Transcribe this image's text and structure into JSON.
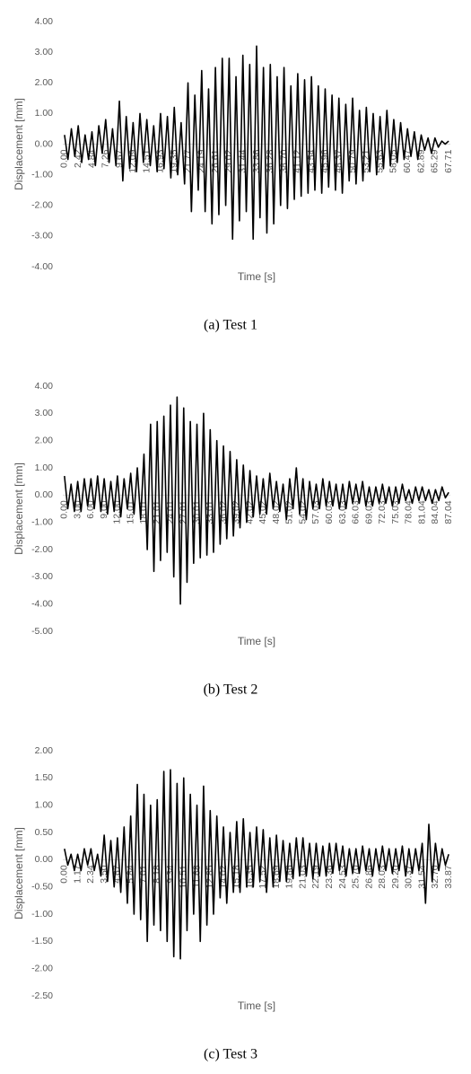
{
  "chart_data": [
    {
      "type": "line",
      "caption": "(a) Test 1",
      "x_label": "Time [s]",
      "y_label": "Displacement [mm]",
      "color": "#000000",
      "categories": [
        "0.00",
        null,
        null,
        null,
        "2.42",
        null,
        null,
        null,
        "4.84",
        null,
        null,
        null,
        "7.26",
        null,
        null,
        null,
        "9.67",
        null,
        null,
        null,
        "12.09",
        null,
        null,
        null,
        "14.51",
        null,
        null,
        null,
        "16.93",
        null,
        null,
        null,
        "19.35",
        null,
        null,
        null,
        "21.77",
        null,
        null,
        null,
        "24.19",
        null,
        null,
        null,
        "26.61",
        null,
        null,
        null,
        "29.02",
        null,
        null,
        null,
        "31.44",
        null,
        null,
        null,
        "33.86",
        null,
        null,
        null,
        "36.28",
        null,
        null,
        null,
        "38.70",
        null,
        null,
        null,
        "41.12",
        null,
        null,
        null,
        "43.54",
        null,
        null,
        null,
        "45.96",
        null,
        null,
        null,
        "48.37",
        null,
        null,
        null,
        "50.79",
        null,
        null,
        null,
        "53.21",
        null,
        null,
        null,
        "55.63",
        null,
        null,
        null,
        "58.05",
        null,
        null,
        null,
        "60.47",
        null,
        null,
        null,
        "62.89",
        null,
        null,
        null,
        "65.29",
        null,
        null,
        null,
        "67.71"
      ],
      "values": [
        0.3,
        -0.5,
        0.5,
        -0.4,
        0.6,
        -0.6,
        0.3,
        -0.5,
        0.4,
        -0.7,
        0.6,
        -0.3,
        0.8,
        -0.6,
        0.5,
        -0.7,
        1.4,
        -1.2,
        0.9,
        -0.8,
        0.7,
        -0.9,
        1.0,
        -0.6,
        0.8,
        -0.7,
        0.6,
        -0.9,
        1.0,
        -0.8,
        0.9,
        -1.1,
        1.2,
        -1.0,
        0.7,
        -1.3,
        2.0,
        -2.2,
        1.6,
        -1.5,
        2.4,
        -2.2,
        1.8,
        -2.6,
        2.5,
        -2.3,
        2.8,
        -2.0,
        2.8,
        -3.1,
        2.2,
        -2.5,
        2.9,
        -2.2,
        2.6,
        -3.1,
        3.2,
        -2.4,
        2.5,
        -2.9,
        2.6,
        -2.6,
        2.2,
        -2.0,
        2.5,
        -2.1,
        1.9,
        -1.8,
        2.3,
        -1.7,
        2.1,
        -1.6,
        2.2,
        -1.5,
        1.9,
        -1.6,
        1.8,
        -1.4,
        1.6,
        -1.5,
        1.5,
        -1.6,
        1.3,
        -1.2,
        1.5,
        -1.3,
        1.1,
        -1.2,
        1.2,
        -0.9,
        1.0,
        -1.0,
        0.9,
        -0.8,
        1.1,
        -0.7,
        0.8,
        -0.6,
        0.7,
        -0.5,
        0.5,
        -0.4,
        0.4,
        -0.5,
        0.3,
        -0.2,
        0.2,
        -0.3,
        0.2,
        -0.1,
        0.1,
        0.0,
        0.1
      ],
      "ylim": [
        -4,
        4
      ],
      "yticks": [
        {
          "value": -4,
          "label": "-4.00"
        },
        {
          "value": -3,
          "label": "-3.00"
        },
        {
          "value": -2,
          "label": "-2.00"
        },
        {
          "value": -1,
          "label": "-1.00"
        },
        {
          "value": 0,
          "label": "0.00"
        },
        {
          "value": 1,
          "label": "1.00"
        },
        {
          "value": 2,
          "label": "2.00"
        },
        {
          "value": 3,
          "label": "3.00"
        },
        {
          "value": 4,
          "label": "4.00"
        }
      ]
    },
    {
      "type": "line",
      "caption": "(b) Test 2",
      "x_label": "Time [s]",
      "y_label": "Displacement [mm]",
      "color": "#000000",
      "categories": [
        "0.00",
        null,
        null,
        null,
        "3.00",
        null,
        null,
        null,
        "6.00",
        null,
        null,
        null,
        "9.00",
        null,
        null,
        null,
        "12.00",
        null,
        null,
        null,
        "15.01",
        null,
        null,
        null,
        "18.01",
        null,
        null,
        null,
        "21.01",
        null,
        null,
        null,
        "24.01",
        null,
        null,
        null,
        "27.01",
        null,
        null,
        null,
        "30.01",
        null,
        null,
        null,
        "33.01",
        null,
        null,
        null,
        "36.02",
        null,
        null,
        null,
        "39.02",
        null,
        null,
        null,
        "42.02",
        null,
        null,
        null,
        "45.02",
        null,
        null,
        null,
        "48.02",
        null,
        null,
        null,
        "51.02",
        null,
        null,
        null,
        "54.02",
        null,
        null,
        null,
        "57.03",
        null,
        null,
        null,
        "60.03",
        null,
        null,
        null,
        "63.03",
        null,
        null,
        null,
        "66.03",
        null,
        null,
        null,
        "69.03",
        null,
        null,
        null,
        "72.03",
        null,
        null,
        null,
        "75.03",
        null,
        null,
        null,
        "78.04",
        null,
        null,
        null,
        "81.04",
        null,
        null,
        null,
        "84.04",
        null,
        null,
        null,
        "87.04"
      ],
      "values": [
        0.7,
        -0.5,
        0.4,
        -0.6,
        0.5,
        -0.6,
        0.6,
        -0.4,
        0.6,
        -0.5,
        0.7,
        -0.6,
        0.6,
        -0.7,
        0.5,
        -0.6,
        0.7,
        -0.8,
        0.6,
        -0.5,
        0.8,
        -0.7,
        1.0,
        -0.9,
        1.5,
        -2.0,
        2.6,
        -2.8,
        2.7,
        -2.4,
        2.9,
        -2.1,
        3.3,
        -3.0,
        3.6,
        -4.0,
        3.2,
        -3.2,
        2.7,
        -2.5,
        2.6,
        -2.3,
        3.0,
        -2.2,
        2.4,
        -2.1,
        2.0,
        -1.8,
        1.8,
        -1.6,
        1.6,
        -1.5,
        1.3,
        -1.2,
        1.1,
        -1.0,
        0.9,
        -0.8,
        0.7,
        -0.7,
        0.6,
        -0.7,
        0.8,
        -0.5,
        0.5,
        -0.6,
        0.4,
        -0.9,
        0.6,
        -0.5,
        1.0,
        -0.7,
        0.6,
        -0.9,
        0.5,
        -0.5,
        0.4,
        -0.5,
        0.6,
        -0.4,
        0.5,
        -0.4,
        0.4,
        -0.5,
        0.4,
        -0.5,
        0.5,
        -0.3,
        0.4,
        -0.3,
        0.5,
        -0.4,
        0.3,
        -0.4,
        0.3,
        -0.3,
        0.4,
        -0.3,
        0.3,
        -0.4,
        0.3,
        -0.3,
        0.4,
        -0.2,
        0.2,
        -0.3,
        0.3,
        -0.2,
        0.3,
        -0.2,
        0.2,
        -0.3,
        0.2,
        -0.2,
        0.3,
        -0.1,
        0.1
      ],
      "ylim": [
        -5,
        4
      ],
      "yticks": [
        {
          "value": -5,
          "label": "-5.00"
        },
        {
          "value": -4,
          "label": "-4.00"
        },
        {
          "value": -3,
          "label": "-3.00"
        },
        {
          "value": -2,
          "label": "-2.00"
        },
        {
          "value": -1,
          "label": "-1.00"
        },
        {
          "value": 0,
          "label": "0.00"
        },
        {
          "value": 1,
          "label": "1.00"
        },
        {
          "value": 2,
          "label": "2.00"
        },
        {
          "value": 3,
          "label": "3.00"
        },
        {
          "value": 4,
          "label": "4.00"
        }
      ]
    },
    {
      "type": "line",
      "caption": "(c) Test 3",
      "x_label": "Time [s]",
      "y_label": "Displacement [mm]",
      "color": "#000000",
      "categories": [
        "0.00",
        null,
        null,
        null,
        "1.17",
        null,
        null,
        null,
        "2.34",
        null,
        null,
        null,
        "3.50",
        null,
        null,
        null,
        "4.67",
        null,
        null,
        null,
        "5.84",
        null,
        null,
        null,
        "7.01",
        null,
        null,
        null,
        "8.18",
        null,
        null,
        null,
        "9.34",
        null,
        null,
        null,
        "10.51",
        null,
        null,
        null,
        "11.68",
        null,
        null,
        null,
        "12.85",
        null,
        null,
        null,
        "14.02",
        null,
        null,
        null,
        "15.18",
        null,
        null,
        null,
        "16.35",
        null,
        null,
        null,
        "17.52",
        null,
        null,
        null,
        "18.69",
        null,
        null,
        null,
        "19.86",
        null,
        null,
        null,
        "21.03",
        null,
        null,
        null,
        "22.19",
        null,
        null,
        null,
        "23.36",
        null,
        null,
        null,
        "24.53",
        null,
        null,
        null,
        "25.70",
        null,
        null,
        null,
        "26.86",
        null,
        null,
        null,
        "28.03",
        null,
        null,
        null,
        "29.20",
        null,
        null,
        null,
        "30.37",
        null,
        null,
        null,
        "31.54",
        null,
        null,
        null,
        "32.70",
        null,
        null,
        null,
        "33.87"
      ],
      "values": [
        0.2,
        -0.1,
        0.1,
        -0.2,
        0.1,
        -0.2,
        0.2,
        -0.1,
        0.2,
        -0.2,
        0.1,
        -0.3,
        0.45,
        -0.4,
        0.35,
        -0.5,
        0.4,
        -0.6,
        0.6,
        -0.8,
        0.8,
        -1.0,
        1.38,
        -1.1,
        1.2,
        -1.5,
        1.0,
        -1.2,
        1.1,
        -1.3,
        1.62,
        -1.5,
        1.65,
        -1.78,
        1.4,
        -1.82,
        1.5,
        -1.3,
        1.2,
        -1.0,
        1.0,
        -1.5,
        1.35,
        -1.2,
        0.9,
        -1.0,
        0.8,
        -0.7,
        0.6,
        -0.8,
        0.5,
        -0.6,
        0.7,
        -0.6,
        0.75,
        -0.5,
        0.5,
        -0.5,
        0.6,
        -0.4,
        0.55,
        -0.6,
        0.4,
        -0.5,
        0.45,
        -0.4,
        0.35,
        -0.4,
        0.3,
        -0.35,
        0.4,
        -0.3,
        0.4,
        -0.3,
        0.3,
        -0.35,
        0.3,
        -0.3,
        0.25,
        -0.3,
        0.3,
        -0.25,
        0.3,
        -0.2,
        0.25,
        -0.3,
        0.2,
        -0.25,
        0.2,
        -0.25,
        0.25,
        -0.2,
        0.2,
        -0.3,
        0.2,
        -0.2,
        0.25,
        -0.2,
        0.2,
        -0.25,
        0.2,
        -0.2,
        0.25,
        -0.3,
        0.2,
        -0.25,
        0.2,
        -0.2,
        0.3,
        -0.8,
        0.65,
        -0.4,
        0.3,
        -0.2,
        0.2,
        -0.1,
        0.1
      ],
      "ylim": [
        -2.5,
        2
      ],
      "yticks": [
        {
          "value": -2.5,
          "label": "-2.50"
        },
        {
          "value": -2,
          "label": "-2.00"
        },
        {
          "value": -1.5,
          "label": "-1.50"
        },
        {
          "value": -1,
          "label": "-1.00"
        },
        {
          "value": -0.5,
          "label": "-0.50"
        },
        {
          "value": 0,
          "label": "0.00"
        },
        {
          "value": 0.5,
          "label": "0.50"
        },
        {
          "value": 1,
          "label": "1.00"
        },
        {
          "value": 1.5,
          "label": "1.50"
        },
        {
          "value": 2,
          "label": "2.00"
        }
      ]
    }
  ]
}
